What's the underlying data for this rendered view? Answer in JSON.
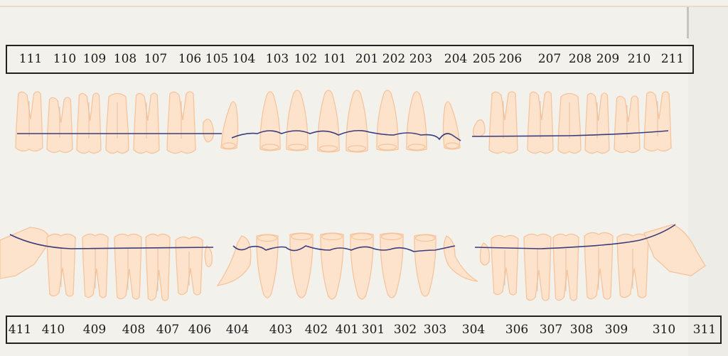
{
  "upper_labels": [
    "111",
    "110",
    "109",
    "108",
    "107",
    "106",
    "105",
    "104",
    "103",
    "102",
    "101",
    "201",
    "202",
    "203",
    "204",
    "205",
    "206",
    "207",
    "208",
    "209",
    "210",
    "211"
  ],
  "lower_labels": [
    "411",
    "410",
    "409",
    "408",
    "407",
    "406",
    "404",
    "403",
    "402",
    "401",
    "301",
    "302",
    "303",
    "304",
    "306",
    "307",
    "308",
    "309",
    "310",
    "311"
  ],
  "colors": {
    "tooth_fill": "#fde3cc",
    "tooth_outline": "#f6c49c",
    "wire": "#3b3c7c",
    "background": "#f3f1ec",
    "label_border": "#222222"
  }
}
